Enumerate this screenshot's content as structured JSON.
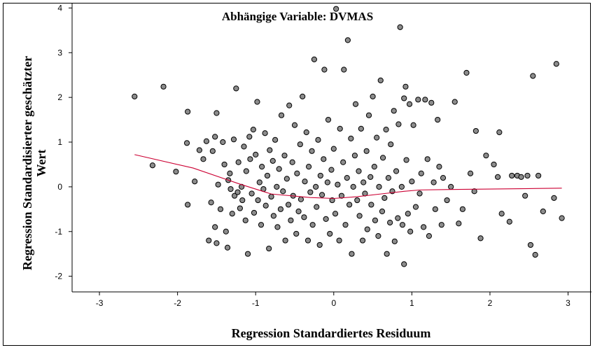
{
  "chart_data": {
    "type": "scatter",
    "title": "Abhängige Variable: DVMAS",
    "xlabel": "Regression Standardiertes Residuum",
    "ylabel_line1": "Regression Standardisierter geschätzter",
    "ylabel_line2": "Wert",
    "xlim": [
      -3.35,
      3.3
    ],
    "ylim": [
      -2.35,
      4.1
    ],
    "x_ticks": [
      -3,
      -2,
      -1,
      0,
      1,
      2,
      3
    ],
    "x_tick_labels": [
      "-3",
      "-2",
      "-1",
      "0",
      "1",
      "2",
      "3"
    ],
    "y_ticks": [
      -2,
      -1,
      0,
      1,
      2,
      3,
      4
    ],
    "y_tick_labels": [
      "-2",
      "-1",
      "0",
      "1",
      "2",
      "3",
      "4"
    ],
    "grid": false,
    "marker_fill": "#8c8c8c",
    "marker_edge": "#000000",
    "fit_color": "#cc0033",
    "points": [
      [
        -2.55,
        2.02
      ],
      [
        -2.32,
        0.48
      ],
      [
        -2.18,
        2.24
      ],
      [
        -2.02,
        0.34
      ],
      [
        -1.87,
        1.68
      ],
      [
        -1.88,
        0.98
      ],
      [
        -1.87,
        -0.4
      ],
      [
        -1.78,
        0.12
      ],
      [
        -1.72,
        0.82
      ],
      [
        -1.67,
        0.62
      ],
      [
        -1.63,
        1.02
      ],
      [
        -1.6,
        -1.2
      ],
      [
        -1.57,
        -0.35
      ],
      [
        -1.55,
        0.8
      ],
      [
        -1.52,
        1.12
      ],
      [
        -1.5,
        1.65
      ],
      [
        -1.52,
        -0.9
      ],
      [
        -1.5,
        -1.26
      ],
      [
        -1.48,
        0.05
      ],
      [
        -1.45,
        -0.5
      ],
      [
        -1.42,
        1.0
      ],
      [
        -1.4,
        0.5
      ],
      [
        -1.38,
        -1.0
      ],
      [
        -1.36,
        -1.36
      ],
      [
        -1.35,
        0.15
      ],
      [
        -1.33,
        0.3
      ],
      [
        -1.32,
        -0.05
      ],
      [
        -1.3,
        -0.6
      ],
      [
        -1.28,
        1.06
      ],
      [
        -1.27,
        -0.2
      ],
      [
        -1.25,
        2.2
      ],
      [
        -1.23,
        -0.12
      ],
      [
        -1.22,
        0.55
      ],
      [
        -1.2,
        -0.48
      ],
      [
        -1.18,
        0.0
      ],
      [
        -1.17,
        -0.3
      ],
      [
        -1.15,
        0.9
      ],
      [
        -1.13,
        -0.75
      ],
      [
        -1.12,
        0.35
      ],
      [
        -1.1,
        -1.5
      ],
      [
        -1.08,
        1.12
      ],
      [
        -1.07,
        0.62
      ],
      [
        -1.05,
        -0.15
      ],
      [
        -1.03,
        1.28
      ],
      [
        -1.02,
        -0.58
      ],
      [
        -1.0,
        0.72
      ],
      [
        -0.98,
        1.9
      ],
      [
        -0.97,
        -0.3
      ],
      [
        -0.95,
        0.1
      ],
      [
        -0.93,
        -0.85
      ],
      [
        -0.92,
        0.45
      ],
      [
        -0.9,
        -0.05
      ],
      [
        -0.88,
        1.2
      ],
      [
        -0.87,
        -0.42
      ],
      [
        -0.85,
        0.25
      ],
      [
        -0.83,
        -1.38
      ],
      [
        -0.82,
        0.82
      ],
      [
        -0.8,
        -0.22
      ],
      [
        -0.78,
        0.58
      ],
      [
        -0.77,
        -0.65
      ],
      [
        -0.75,
        1.05
      ],
      [
        -0.73,
        0.0
      ],
      [
        -0.72,
        -0.9
      ],
      [
        -0.7,
        0.4
      ],
      [
        -0.68,
        -0.5
      ],
      [
        -0.67,
        1.6
      ],
      [
        -0.65,
        -0.1
      ],
      [
        -0.63,
        0.7
      ],
      [
        -0.62,
        -1.2
      ],
      [
        -0.6,
        0.18
      ],
      [
        -0.58,
        -0.4
      ],
      [
        -0.57,
        1.82
      ],
      [
        -0.55,
        -0.75
      ],
      [
        -0.53,
        0.55
      ],
      [
        -0.52,
        -0.2
      ],
      [
        -0.5,
        1.38
      ],
      [
        -0.48,
        -1.05
      ],
      [
        -0.47,
        0.3
      ],
      [
        -0.45,
        -0.55
      ],
      [
        -0.43,
        0.95
      ],
      [
        -0.42,
        -0.28
      ],
      [
        -0.4,
        2.02
      ],
      [
        -0.38,
        -0.68
      ],
      [
        -0.37,
        0.12
      ],
      [
        -0.35,
        1.22
      ],
      [
        -0.33,
        -1.2
      ],
      [
        -0.32,
        0.45
      ],
      [
        -0.3,
        -0.12
      ],
      [
        -0.28,
        0.8
      ],
      [
        -0.27,
        -0.85
      ],
      [
        -0.25,
        2.85
      ],
      [
        -0.23,
        0.0
      ],
      [
        -0.22,
        -0.45
      ],
      [
        -0.2,
        1.05
      ],
      [
        -0.18,
        -1.3
      ],
      [
        -0.17,
        0.25
      ],
      [
        -0.15,
        -0.18
      ],
      [
        -0.13,
        0.62
      ],
      [
        -0.12,
        2.62
      ],
      [
        -0.1,
        -0.72
      ],
      [
        -0.08,
        0.1
      ],
      [
        -0.07,
        1.5
      ],
      [
        -0.05,
        -1.05
      ],
      [
        -0.03,
        0.38
      ],
      [
        -0.02,
        -0.3
      ],
      [
        0.0,
        0.85
      ],
      [
        0.02,
        -0.6
      ],
      [
        0.03,
        3.98
      ],
      [
        0.05,
        0.05
      ],
      [
        0.07,
        -1.2
      ],
      [
        0.08,
        1.3
      ],
      [
        0.1,
        -0.2
      ],
      [
        0.12,
        0.55
      ],
      [
        0.13,
        2.62
      ],
      [
        0.15,
        -0.85
      ],
      [
        0.17,
        0.2
      ],
      [
        0.18,
        3.28
      ],
      [
        0.2,
        -0.4
      ],
      [
        0.22,
        1.08
      ],
      [
        0.23,
        -1.5
      ],
      [
        0.25,
        0.0
      ],
      [
        0.27,
        0.7
      ],
      [
        0.28,
        1.85
      ],
      [
        0.3,
        -0.3
      ],
      [
        0.32,
        0.35
      ],
      [
        0.33,
        -0.65
      ],
      [
        0.35,
        1.3
      ],
      [
        0.37,
        -1.2
      ],
      [
        0.38,
        0.1
      ],
      [
        0.4,
        -0.15
      ],
      [
        0.42,
        0.8
      ],
      [
        0.43,
        -0.95
      ],
      [
        0.45,
        1.6
      ],
      [
        0.47,
        0.22
      ],
      [
        0.48,
        -0.4
      ],
      [
        0.5,
        2.02
      ],
      [
        0.52,
        0.45
      ],
      [
        0.53,
        -0.75
      ],
      [
        0.55,
        1.1
      ],
      [
        0.57,
        -1.1
      ],
      [
        0.58,
        0.0
      ],
      [
        0.6,
        2.38
      ],
      [
        0.62,
        -0.55
      ],
      [
        0.63,
        0.65
      ],
      [
        0.65,
        -0.25
      ],
      [
        0.67,
        1.28
      ],
      [
        0.68,
        -1.5
      ],
      [
        0.7,
        0.2
      ],
      [
        0.72,
        -0.8
      ],
      [
        0.73,
        0.95
      ],
      [
        0.75,
        -0.1
      ],
      [
        0.77,
        1.7
      ],
      [
        0.78,
        -1.22
      ],
      [
        0.8,
        0.35
      ],
      [
        0.82,
        -0.7
      ],
      [
        0.83,
        1.4
      ],
      [
        0.85,
        3.57
      ],
      [
        0.87,
        0.0
      ],
      [
        0.88,
        -0.85
      ],
      [
        0.9,
        1.98
      ],
      [
        0.9,
        -1.73
      ],
      [
        0.92,
        2.24
      ],
      [
        0.93,
        0.6
      ],
      [
        0.95,
        -0.6
      ],
      [
        0.97,
        1.85
      ],
      [
        0.98,
        -1.0
      ],
      [
        1.0,
        0.12
      ],
      [
        1.02,
        1.38
      ],
      [
        1.05,
        -0.45
      ],
      [
        1.08,
        1.95
      ],
      [
        1.1,
        -0.15
      ],
      [
        1.12,
        0.3
      ],
      [
        1.15,
        -0.9
      ],
      [
        1.17,
        1.95
      ],
      [
        1.2,
        0.62
      ],
      [
        1.22,
        -1.1
      ],
      [
        1.25,
        1.88
      ],
      [
        1.28,
        0.1
      ],
      [
        1.3,
        -0.5
      ],
      [
        1.33,
        1.5
      ],
      [
        1.35,
        0.45
      ],
      [
        1.38,
        -0.85
      ],
      [
        1.4,
        0.2
      ],
      [
        1.45,
        -0.3
      ],
      [
        1.5,
        0.0
      ],
      [
        1.55,
        1.9
      ],
      [
        1.6,
        -0.82
      ],
      [
        1.65,
        -0.5
      ],
      [
        1.7,
        2.55
      ],
      [
        1.75,
        0.3
      ],
      [
        1.8,
        -0.1
      ],
      [
        1.82,
        1.25
      ],
      [
        1.88,
        -1.15
      ],
      [
        1.95,
        0.7
      ],
      [
        2.05,
        0.5
      ],
      [
        2.1,
        0.22
      ],
      [
        2.12,
        1.22
      ],
      [
        2.15,
        -0.6
      ],
      [
        2.25,
        -0.78
      ],
      [
        2.28,
        0.25
      ],
      [
        2.35,
        0.25
      ],
      [
        2.4,
        0.22
      ],
      [
        2.45,
        -0.2
      ],
      [
        2.48,
        0.25
      ],
      [
        2.52,
        -1.3
      ],
      [
        2.55,
        2.48
      ],
      [
        2.58,
        -1.52
      ],
      [
        2.62,
        0.25
      ],
      [
        2.68,
        -0.55
      ],
      [
        2.82,
        -0.25
      ],
      [
        2.85,
        2.75
      ],
      [
        2.92,
        -0.7
      ]
    ],
    "fit_line": [
      [
        -2.55,
        0.72
      ],
      [
        -1.8,
        0.42
      ],
      [
        -1.2,
        0.06
      ],
      [
        -0.8,
        -0.16
      ],
      [
        -0.3,
        -0.24
      ],
      [
        0.0,
        -0.26
      ],
      [
        0.3,
        -0.22
      ],
      [
        0.6,
        -0.16
      ],
      [
        0.9,
        -0.1
      ],
      [
        1.1,
        -0.07
      ],
      [
        1.5,
        -0.06
      ],
      [
        2.0,
        -0.05
      ],
      [
        2.5,
        -0.04
      ],
      [
        2.92,
        -0.03
      ]
    ]
  }
}
